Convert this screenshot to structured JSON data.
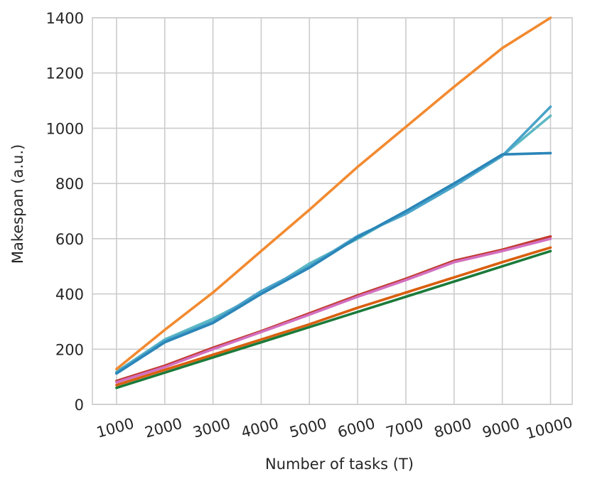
{
  "chart_data": {
    "type": "line",
    "title": "",
    "xlabel": "Number of tasks (T)",
    "ylabel": "Makespan (a.u.)",
    "xlim": [
      500,
      10450
    ],
    "ylim": [
      0,
      1400
    ],
    "x_ticks": [
      1000,
      2000,
      3000,
      4000,
      5000,
      6000,
      7000,
      8000,
      9000,
      10000
    ],
    "y_ticks": [
      0,
      200,
      400,
      600,
      800,
      1000,
      1200,
      1400
    ],
    "x_tick_rotation": -15,
    "grid": true,
    "legend": "none",
    "x": [
      1000,
      2000,
      3000,
      4000,
      5000,
      6000,
      7000,
      8000,
      9000,
      10000
    ],
    "series": [
      {
        "color": "#1b7a3a",
        "values": [
          60,
          115,
          170,
          225,
          280,
          335,
          390,
          445,
          500,
          555
        ]
      },
      {
        "color": "#d95f0e",
        "values": [
          70,
          125,
          180,
          235,
          290,
          350,
          405,
          460,
          515,
          568
        ]
      },
      {
        "color": "#c0392b",
        "values": [
          85,
          140,
          205,
          265,
          330,
          395,
          455,
          520,
          560,
          608
        ]
      },
      {
        "color": "#d36fbf",
        "values": [
          80,
          135,
          200,
          262,
          325,
          390,
          450,
          515,
          555,
          600
        ]
      },
      {
        "color": "#5cb8c4",
        "values": [
          118,
          235,
          310,
          400,
          510,
          600,
          700,
          800,
          900,
          1045
        ]
      },
      {
        "color": "#4aa3c9",
        "values": [
          115,
          230,
          300,
          410,
          500,
          610,
          690,
          790,
          900,
          1078
        ]
      },
      {
        "color": "#2b86b8",
        "values": [
          112,
          225,
          295,
          400,
          495,
          605,
          700,
          800,
          905,
          910
        ]
      },
      {
        "color": "#f28a30",
        "values": [
          128,
          270,
          405,
          555,
          705,
          860,
          1005,
          1150,
          1290,
          1400
        ]
      }
    ]
  }
}
